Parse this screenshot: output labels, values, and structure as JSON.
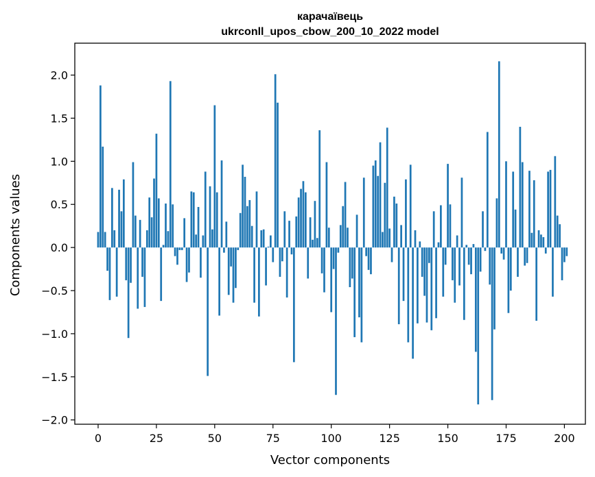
{
  "chart_data": {
    "type": "bar",
    "title": "карачаївець",
    "subtitle": "ukrconll_upos_cbow_200_10_2022 model",
    "xlabel": "Vector components",
    "ylabel": "Components values",
    "xlim": [
      -10,
      209
    ],
    "ylim": [
      -2.05,
      2.37
    ],
    "xticks": [
      0,
      25,
      50,
      75,
      100,
      125,
      150,
      175,
      200
    ],
    "yticks": [
      -2.0,
      -1.5,
      -1.0,
      -0.5,
      0.0,
      0.5,
      1.0,
      1.5,
      2.0
    ],
    "ytick_labels": [
      "−2.0",
      "−1.5",
      "−1.0",
      "−0.5",
      "0.0",
      "0.5",
      "1.0",
      "1.5",
      "2.0"
    ],
    "bar_color": "#1f77b4",
    "grid": false,
    "values": [
      0.18,
      1.88,
      1.17,
      0.18,
      -0.27,
      -0.61,
      0.69,
      0.2,
      -0.57,
      0.67,
      0.42,
      0.79,
      -0.38,
      -1.05,
      -0.41,
      0.99,
      0.37,
      -0.71,
      0.32,
      -0.34,
      -0.69,
      0.2,
      0.58,
      0.35,
      0.8,
      1.32,
      0.57,
      -0.62,
      0.03,
      0.51,
      0.19,
      1.93,
      0.5,
      -0.1,
      -0.2,
      -0.03,
      -0.03,
      0.34,
      -0.4,
      -0.29,
      0.65,
      0.64,
      0.15,
      0.47,
      -0.35,
      0.14,
      0.88,
      -1.49,
      0.71,
      0.21,
      1.65,
      0.64,
      -0.79,
      1.01,
      -0.06,
      0.3,
      -0.55,
      -0.22,
      -0.64,
      -0.47,
      -0.03,
      0.4,
      0.96,
      0.82,
      0.48,
      0.55,
      0.25,
      -0.64,
      0.65,
      -0.8,
      0.2,
      0.21,
      -0.44,
      0.01,
      0.14,
      -0.17,
      2.01,
      1.68,
      -0.34,
      -0.16,
      0.42,
      -0.58,
      0.31,
      -0.08,
      -1.33,
      0.36,
      0.58,
      0.68,
      0.77,
      0.64,
      -0.36,
      0.35,
      0.09,
      0.54,
      0.11,
      1.36,
      -0.3,
      -0.52,
      0.99,
      0.23,
      -0.75,
      -0.25,
      -1.71,
      -0.06,
      0.26,
      0.48,
      0.76,
      0.23,
      -0.46,
      -0.36,
      -1.04,
      0.38,
      -0.81,
      -1.1,
      0.81,
      -0.1,
      -0.26,
      -0.31,
      0.95,
      1.01,
      0.83,
      1.22,
      0.18,
      0.75,
      1.39,
      0.22,
      -0.17,
      0.59,
      0.51,
      -0.89,
      0.26,
      -0.62,
      0.79,
      -1.1,
      0.96,
      -1.29,
      0.2,
      -0.88,
      0.07,
      -0.34,
      -0.56,
      -0.87,
      -0.18,
      -0.96,
      0.42,
      -0.82,
      0.06,
      0.49,
      -0.57,
      -0.2,
      0.97,
      0.5,
      -0.38,
      -0.64,
      0.14,
      -0.44,
      0.81,
      -0.84,
      0.03,
      -0.2,
      -0.31,
      0.04,
      -1.21,
      -1.82,
      -0.28,
      0.42,
      -0.04,
      1.34,
      -0.43,
      -1.77,
      -0.95,
      0.57,
      2.16,
      -0.07,
      -0.14,
      1.0,
      -0.76,
      -0.5,
      0.88,
      0.44,
      -0.34,
      1.4,
      0.99,
      -0.21,
      -0.18,
      0.89,
      0.17,
      0.78,
      -0.85,
      0.2,
      0.15,
      0.12,
      -0.07,
      0.88,
      0.9,
      -0.57,
      1.06,
      0.37,
      0.27,
      -0.38,
      -0.17,
      -0.1
    ]
  }
}
